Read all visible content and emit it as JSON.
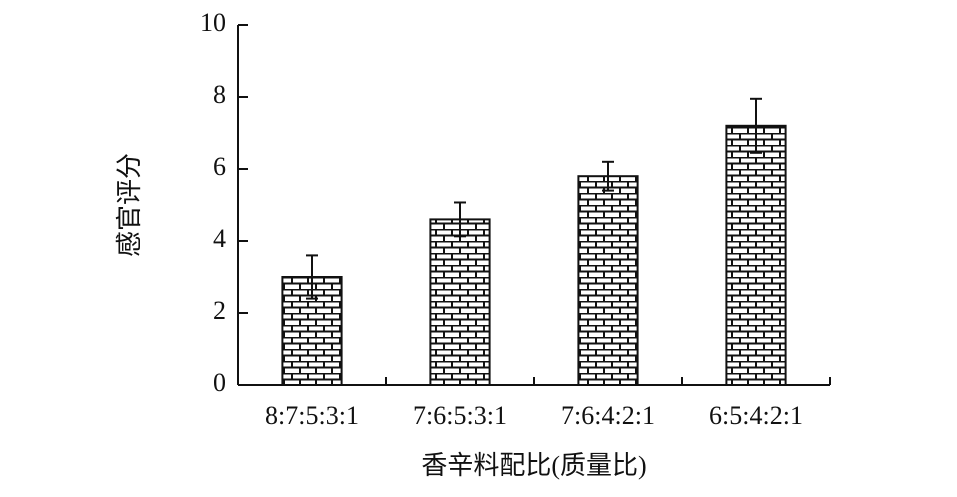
{
  "chart_data": {
    "type": "bar",
    "xlabel": "香辛料配比(质量比)",
    "ylabel": "感官评分",
    "categories": [
      "8:7:5:3:1",
      "7:6:5:3:1",
      "7:6:4:2:1",
      "6:5:4:2:1"
    ],
    "values": [
      3.0,
      4.6,
      5.8,
      7.2
    ],
    "errors": [
      0.6,
      0.47,
      0.4,
      0.75
    ],
    "ylim": [
      0,
      10
    ],
    "yticks": [
      0,
      2,
      4,
      6,
      8,
      10
    ]
  }
}
